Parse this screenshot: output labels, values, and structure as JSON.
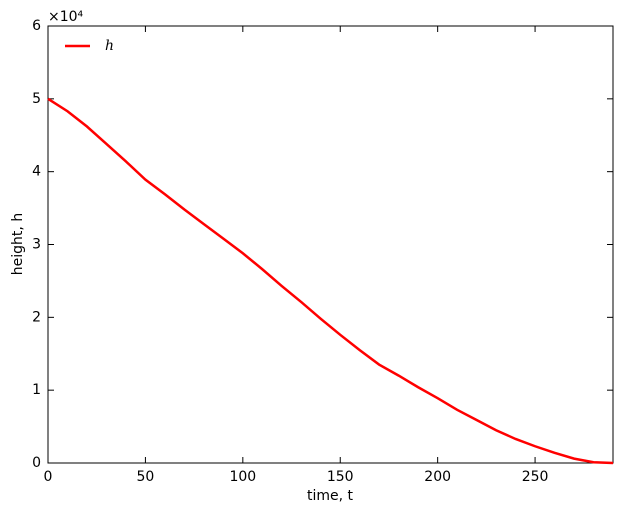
{
  "chart_data": {
    "type": "line",
    "x_label": "time, t",
    "y_label": "height, h",
    "y_offset_label": "×10⁴",
    "x": [
      0,
      10,
      20,
      30,
      40,
      50,
      60,
      70,
      80,
      90,
      100,
      110,
      120,
      130,
      140,
      150,
      160,
      170,
      180,
      190,
      200,
      210,
      220,
      230,
      240,
      250,
      260,
      270,
      280,
      290
    ],
    "series": [
      {
        "name": "h",
        "color": "#ff0000",
        "values": [
          5.0,
          4.83,
          4.62,
          4.38,
          4.14,
          3.89,
          3.69,
          3.48,
          3.28,
          3.08,
          2.88,
          2.66,
          2.43,
          2.21,
          1.98,
          1.76,
          1.55,
          1.35,
          1.2,
          1.04,
          0.89,
          0.73,
          0.59,
          0.45,
          0.33,
          0.23,
          0.14,
          0.06,
          0.01,
          0
        ]
      }
    ],
    "xlim": [
      0,
      290
    ],
    "xticks": [
      0,
      50,
      100,
      150,
      200,
      250
    ],
    "ylim": [
      0,
      6
    ],
    "yticks": [
      0,
      1,
      2,
      3,
      4,
      5,
      6
    ],
    "legend": "upper left"
  }
}
